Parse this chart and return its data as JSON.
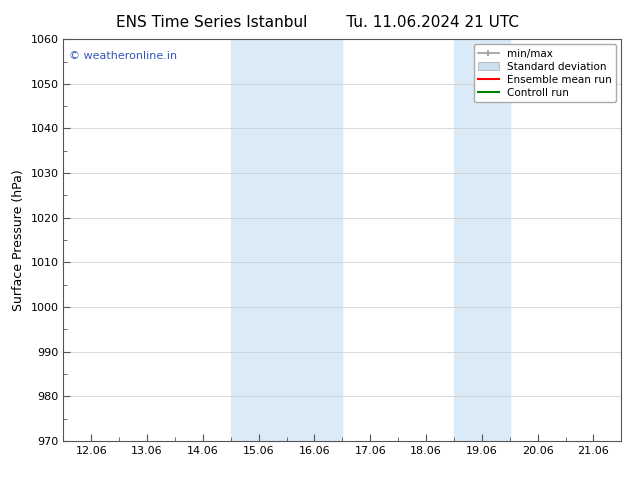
{
  "title_left": "ENS Time Series Istanbul",
  "title_right": "Tu. 11.06.2024 21 UTC",
  "ylabel": "Surface Pressure (hPa)",
  "ylim": [
    970,
    1060
  ],
  "yticks": [
    970,
    980,
    990,
    1000,
    1010,
    1020,
    1030,
    1040,
    1050,
    1060
  ],
  "xtick_labels": [
    "12.06",
    "13.06",
    "14.06",
    "15.06",
    "16.06",
    "17.06",
    "18.06",
    "19.06",
    "20.06",
    "21.06"
  ],
  "xtick_positions": [
    0,
    1,
    2,
    3,
    4,
    5,
    6,
    7,
    8,
    9
  ],
  "xlim": [
    -0.5,
    9.5
  ],
  "shaded_bands": [
    {
      "x_start": 2.5,
      "x_end": 4.5
    },
    {
      "x_start": 6.5,
      "x_end": 7.5
    }
  ],
  "shaded_color": "#dbeaf7",
  "watermark_text": "© weatheronline.in",
  "watermark_color": "#3355bb",
  "watermark_fontsize": 8,
  "legend_entries": [
    {
      "label": "min/max",
      "type": "minmax"
    },
    {
      "label": "Standard deviation",
      "type": "stdev",
      "color": "#ccdded"
    },
    {
      "label": "Ensemble mean run",
      "type": "line",
      "color": "red"
    },
    {
      "label": "Controll run",
      "type": "line",
      "color": "green"
    }
  ],
  "title_fontsize": 11,
  "ylabel_fontsize": 9,
  "tick_fontsize": 8,
  "legend_fontsize": 7.5,
  "bg_color": "#ffffff",
  "spine_color": "#555555",
  "tick_color": "#555555",
  "grid_color": "#cccccc"
}
